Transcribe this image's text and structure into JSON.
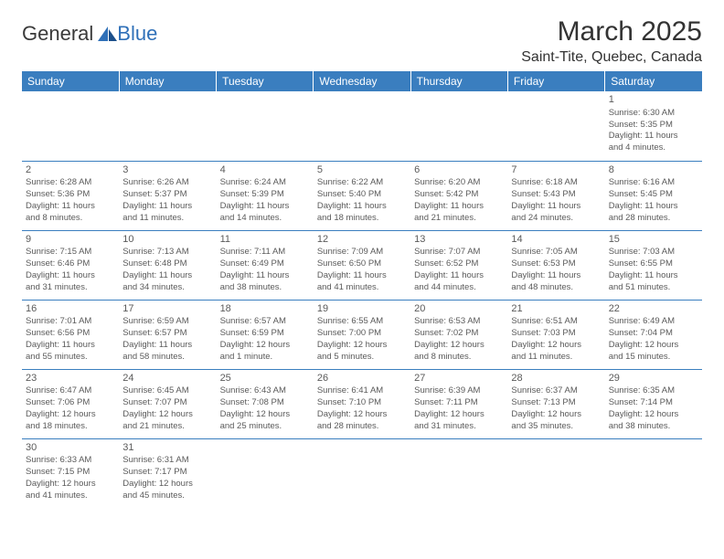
{
  "brand": {
    "general": "General",
    "blue": "Blue"
  },
  "title": "March 2025",
  "location": "Saint-Tite, Quebec, Canada",
  "colors": {
    "header_bg": "#3a7ebf",
    "header_text": "#ffffff",
    "body_text": "#5a5a5a",
    "border": "#3a7ebf",
    "brand_blue": "#2f70b8"
  },
  "weekdays": [
    "Sunday",
    "Monday",
    "Tuesday",
    "Wednesday",
    "Thursday",
    "Friday",
    "Saturday"
  ],
  "weeks": [
    [
      null,
      null,
      null,
      null,
      null,
      null,
      {
        "n": "1",
        "sr": "Sunrise: 6:30 AM",
        "ss": "Sunset: 5:35 PM",
        "d1": "Daylight: 11 hours",
        "d2": "and 4 minutes."
      }
    ],
    [
      {
        "n": "2",
        "sr": "Sunrise: 6:28 AM",
        "ss": "Sunset: 5:36 PM",
        "d1": "Daylight: 11 hours",
        "d2": "and 8 minutes."
      },
      {
        "n": "3",
        "sr": "Sunrise: 6:26 AM",
        "ss": "Sunset: 5:37 PM",
        "d1": "Daylight: 11 hours",
        "d2": "and 11 minutes."
      },
      {
        "n": "4",
        "sr": "Sunrise: 6:24 AM",
        "ss": "Sunset: 5:39 PM",
        "d1": "Daylight: 11 hours",
        "d2": "and 14 minutes."
      },
      {
        "n": "5",
        "sr": "Sunrise: 6:22 AM",
        "ss": "Sunset: 5:40 PM",
        "d1": "Daylight: 11 hours",
        "d2": "and 18 minutes."
      },
      {
        "n": "6",
        "sr": "Sunrise: 6:20 AM",
        "ss": "Sunset: 5:42 PM",
        "d1": "Daylight: 11 hours",
        "d2": "and 21 minutes."
      },
      {
        "n": "7",
        "sr": "Sunrise: 6:18 AM",
        "ss": "Sunset: 5:43 PM",
        "d1": "Daylight: 11 hours",
        "d2": "and 24 minutes."
      },
      {
        "n": "8",
        "sr": "Sunrise: 6:16 AM",
        "ss": "Sunset: 5:45 PM",
        "d1": "Daylight: 11 hours",
        "d2": "and 28 minutes."
      }
    ],
    [
      {
        "n": "9",
        "sr": "Sunrise: 7:15 AM",
        "ss": "Sunset: 6:46 PM",
        "d1": "Daylight: 11 hours",
        "d2": "and 31 minutes."
      },
      {
        "n": "10",
        "sr": "Sunrise: 7:13 AM",
        "ss": "Sunset: 6:48 PM",
        "d1": "Daylight: 11 hours",
        "d2": "and 34 minutes."
      },
      {
        "n": "11",
        "sr": "Sunrise: 7:11 AM",
        "ss": "Sunset: 6:49 PM",
        "d1": "Daylight: 11 hours",
        "d2": "and 38 minutes."
      },
      {
        "n": "12",
        "sr": "Sunrise: 7:09 AM",
        "ss": "Sunset: 6:50 PM",
        "d1": "Daylight: 11 hours",
        "d2": "and 41 minutes."
      },
      {
        "n": "13",
        "sr": "Sunrise: 7:07 AM",
        "ss": "Sunset: 6:52 PM",
        "d1": "Daylight: 11 hours",
        "d2": "and 44 minutes."
      },
      {
        "n": "14",
        "sr": "Sunrise: 7:05 AM",
        "ss": "Sunset: 6:53 PM",
        "d1": "Daylight: 11 hours",
        "d2": "and 48 minutes."
      },
      {
        "n": "15",
        "sr": "Sunrise: 7:03 AM",
        "ss": "Sunset: 6:55 PM",
        "d1": "Daylight: 11 hours",
        "d2": "and 51 minutes."
      }
    ],
    [
      {
        "n": "16",
        "sr": "Sunrise: 7:01 AM",
        "ss": "Sunset: 6:56 PM",
        "d1": "Daylight: 11 hours",
        "d2": "and 55 minutes."
      },
      {
        "n": "17",
        "sr": "Sunrise: 6:59 AM",
        "ss": "Sunset: 6:57 PM",
        "d1": "Daylight: 11 hours",
        "d2": "and 58 minutes."
      },
      {
        "n": "18",
        "sr": "Sunrise: 6:57 AM",
        "ss": "Sunset: 6:59 PM",
        "d1": "Daylight: 12 hours",
        "d2": "and 1 minute."
      },
      {
        "n": "19",
        "sr": "Sunrise: 6:55 AM",
        "ss": "Sunset: 7:00 PM",
        "d1": "Daylight: 12 hours",
        "d2": "and 5 minutes."
      },
      {
        "n": "20",
        "sr": "Sunrise: 6:53 AM",
        "ss": "Sunset: 7:02 PM",
        "d1": "Daylight: 12 hours",
        "d2": "and 8 minutes."
      },
      {
        "n": "21",
        "sr": "Sunrise: 6:51 AM",
        "ss": "Sunset: 7:03 PM",
        "d1": "Daylight: 12 hours",
        "d2": "and 11 minutes."
      },
      {
        "n": "22",
        "sr": "Sunrise: 6:49 AM",
        "ss": "Sunset: 7:04 PM",
        "d1": "Daylight: 12 hours",
        "d2": "and 15 minutes."
      }
    ],
    [
      {
        "n": "23",
        "sr": "Sunrise: 6:47 AM",
        "ss": "Sunset: 7:06 PM",
        "d1": "Daylight: 12 hours",
        "d2": "and 18 minutes."
      },
      {
        "n": "24",
        "sr": "Sunrise: 6:45 AM",
        "ss": "Sunset: 7:07 PM",
        "d1": "Daylight: 12 hours",
        "d2": "and 21 minutes."
      },
      {
        "n": "25",
        "sr": "Sunrise: 6:43 AM",
        "ss": "Sunset: 7:08 PM",
        "d1": "Daylight: 12 hours",
        "d2": "and 25 minutes."
      },
      {
        "n": "26",
        "sr": "Sunrise: 6:41 AM",
        "ss": "Sunset: 7:10 PM",
        "d1": "Daylight: 12 hours",
        "d2": "and 28 minutes."
      },
      {
        "n": "27",
        "sr": "Sunrise: 6:39 AM",
        "ss": "Sunset: 7:11 PM",
        "d1": "Daylight: 12 hours",
        "d2": "and 31 minutes."
      },
      {
        "n": "28",
        "sr": "Sunrise: 6:37 AM",
        "ss": "Sunset: 7:13 PM",
        "d1": "Daylight: 12 hours",
        "d2": "and 35 minutes."
      },
      {
        "n": "29",
        "sr": "Sunrise: 6:35 AM",
        "ss": "Sunset: 7:14 PM",
        "d1": "Daylight: 12 hours",
        "d2": "and 38 minutes."
      }
    ],
    [
      {
        "n": "30",
        "sr": "Sunrise: 6:33 AM",
        "ss": "Sunset: 7:15 PM",
        "d1": "Daylight: 12 hours",
        "d2": "and 41 minutes."
      },
      {
        "n": "31",
        "sr": "Sunrise: 6:31 AM",
        "ss": "Sunset: 7:17 PM",
        "d1": "Daylight: 12 hours",
        "d2": "and 45 minutes."
      },
      null,
      null,
      null,
      null,
      null
    ]
  ]
}
